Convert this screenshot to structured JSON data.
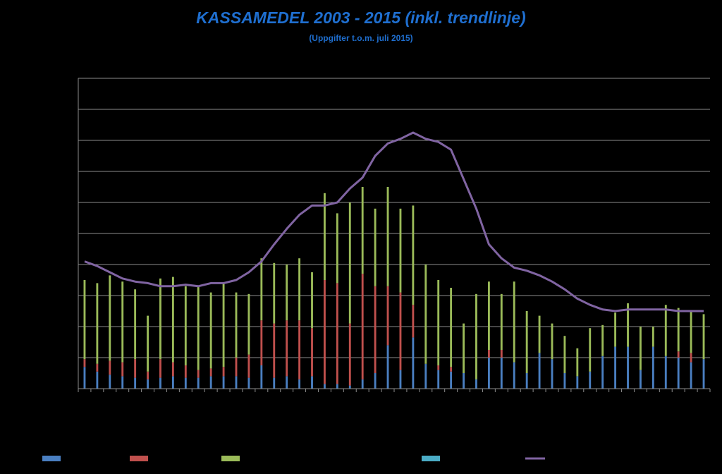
{
  "chart_data": {
    "type": "bar",
    "title": "KASSAMEDEL 2003 - 2015 (inkl. trendlinje)",
    "subtitle": "(Uppgifter t.o.m. juli 2015)",
    "stacked": true,
    "ylim": [
      0,
      10
    ],
    "grid": true,
    "legend": "bottom",
    "series": [
      {
        "color": "#4a7fc1",
        "values": [
          0.7,
          0.55,
          0.45,
          0.4,
          0.35,
          0.3,
          0.35,
          0.4,
          0.35,
          0.35,
          0.4,
          0.4,
          0.4,
          0.35,
          0.75,
          0.35,
          0.4,
          0.3,
          0.4,
          0.15,
          0.15,
          0.1,
          0.3,
          0.5,
          1.4,
          0.6,
          1.65,
          0.8,
          0.6,
          0.55,
          0.5,
          0.3,
          1.0,
          1.0,
          0.85,
          0.5,
          1.15,
          0.95,
          0.5,
          0.4,
          0.55,
          1.05,
          1.35,
          1.35,
          0.6,
          1.35,
          1.05,
          1.0,
          0.85,
          0.95
        ]
      },
      {
        "color": "#c0504d",
        "values": [
          0.25,
          0.25,
          0.45,
          0.45,
          0.6,
          0.25,
          0.6,
          0.45,
          0.4,
          0.25,
          0.25,
          0.3,
          0.6,
          0.75,
          1.45,
          1.75,
          1.8,
          1.9,
          1.55,
          3.35,
          3.25,
          2.0,
          3.4,
          2.8,
          1.9,
          2.5,
          1.05,
          0.0,
          0.15,
          0.15,
          0.0,
          0.0,
          0.25,
          0.25,
          0.0,
          0.0,
          0.0,
          0.0,
          0.0,
          0.0,
          0.0,
          0.0,
          0.0,
          0.0,
          0.0,
          0.0,
          0.0,
          0.2,
          0.3,
          0.0
        ]
      },
      {
        "color": "#9bbb59",
        "values": [
          2.55,
          2.6,
          2.75,
          2.6,
          2.25,
          1.8,
          2.6,
          2.75,
          2.55,
          2.7,
          2.45,
          2.7,
          2.1,
          1.95,
          2.0,
          1.95,
          1.8,
          2.0,
          1.8,
          2.8,
          2.25,
          3.9,
          2.8,
          2.5,
          3.2,
          2.7,
          3.2,
          3.2,
          2.75,
          2.55,
          1.6,
          2.75,
          2.2,
          1.8,
          2.6,
          2.0,
          1.2,
          1.15,
          1.2,
          0.9,
          1.4,
          1.0,
          1.1,
          1.4,
          1.4,
          0.65,
          1.65,
          1.4,
          1.35,
          1.45
        ]
      },
      {
        "color": "#4bacc6",
        "values": []
      }
    ],
    "trend": {
      "color": "#8064a2",
      "values": [
        4.1,
        3.95,
        3.75,
        3.55,
        3.45,
        3.4,
        3.3,
        3.3,
        3.35,
        3.3,
        3.4,
        3.4,
        3.5,
        3.75,
        4.1,
        4.65,
        5.15,
        5.6,
        5.9,
        5.9,
        6.0,
        6.45,
        6.8,
        7.5,
        7.9,
        8.05,
        8.25,
        8.05,
        7.95,
        7.7,
        6.75,
        5.8,
        4.65,
        4.2,
        3.9,
        3.8,
        3.65,
        3.45,
        3.2,
        2.9,
        2.7,
        2.55,
        2.5,
        2.55,
        2.55,
        2.55,
        2.55,
        2.5,
        2.5,
        2.5
      ]
    }
  }
}
